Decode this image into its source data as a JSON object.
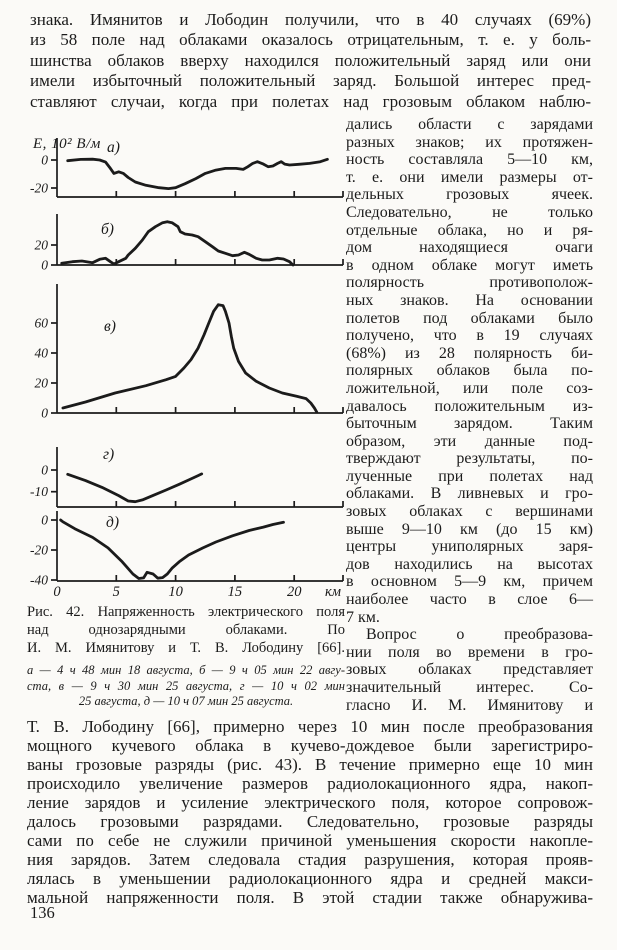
{
  "page": {
    "number": "136",
    "ink": "#1b1b1b",
    "paper": "#fbfaf7"
  },
  "top_paragraph": {
    "lines": [
      "знака. Имянитов и Лободин получили, что в 40 случаях (69%)",
      "из 58 поле над облаками оказалось отрицательным, т. е. у боль-",
      "шинства облаков вверху находился положительный заряд или они",
      "имели избыточный положительный заряд. Большой интерес пред-",
      "ставляют случаи, когда при полетах над грозовым облаком наблю-"
    ]
  },
  "right_column": {
    "para1_lines": [
      "дались области с зарядами",
      "разных знаков; их протяжен-",
      "ность составляла 5—10 км,",
      "т. е. они имели размеры от-",
      "дельных грозовых ячеек.",
      "Следовательно, не только",
      "отдельные облака, но и ря-",
      "дом находящиеся очаги",
      "в одном облаке могут иметь",
      "полярность противополож-",
      "ных знаков. На основании",
      "полетов под облаками было",
      "получено, что в 19 случаях",
      "(68%) из 28 полярность би-",
      "полярных облаков была по-",
      "ложительной, или поле соз-",
      "давалось положительным из-",
      "быточным зарядом. Таким",
      "образом, эти данные под-",
      "тверждают результаты, по-",
      "лученные при полетах над",
      "облаками. В ливневых и гро-",
      "зовых облаках с вершинами",
      "выше 9—10 км (до 15 км)",
      "центры униполярных заря-",
      "дов находились на высотах",
      "в основном 5—9 км, причем",
      "наиболее часто в слое 6—",
      "7 км."
    ],
    "para2_lines": [
      "Вопрос о преобразова-",
      "нии поля во времени в гро-",
      "зовых облаках представляет",
      "значительный интерес. Со-",
      "гласно И. М. Имянитову и"
    ]
  },
  "chart_data": {
    "type": "line",
    "title": "Рис. 42. Напряженность электрического поля над однозарядными облаками",
    "ylabel": "E, 10² В/м",
    "xlabel": "км",
    "x_range": [
      0,
      24
    ],
    "grid": false,
    "x_ticks": [
      {
        "v": 0,
        "t": "0"
      },
      {
        "v": 5,
        "t": "5"
      },
      {
        "v": 10,
        "t": "10"
      },
      {
        "v": 15,
        "t": "15"
      },
      {
        "v": 20,
        "t": "20"
      }
    ],
    "panels": [
      {
        "id": "a",
        "label": "а)",
        "ylim": [
          -26,
          4
        ],
        "yticks": [
          {
            "v": 0,
            "t": "0"
          },
          {
            "v": -20,
            "t": "-20"
          }
        ],
        "points": [
          [
            0.9,
            -0.5
          ],
          [
            2.0,
            0.4
          ],
          [
            3.0,
            0.6
          ],
          [
            3.6,
            0
          ],
          [
            4.1,
            -1.5
          ],
          [
            4.5,
            -6
          ],
          [
            4.8,
            -9.6
          ],
          [
            5.2,
            -8.4
          ],
          [
            5.6,
            -9.6
          ],
          [
            6.0,
            -12.5
          ],
          [
            6.6,
            -15.7
          ],
          [
            7.5,
            -18.1
          ],
          [
            8.6,
            -19.8
          ],
          [
            9.4,
            -20.4
          ],
          [
            10.0,
            -19.8
          ],
          [
            10.8,
            -16.9
          ],
          [
            11.7,
            -13.3
          ],
          [
            12.5,
            -9.6
          ],
          [
            13.4,
            -7.2
          ],
          [
            14.2,
            -6.0
          ],
          [
            15.1,
            -6.0
          ],
          [
            15.7,
            -6.7
          ],
          [
            16.1,
            -4.8
          ],
          [
            16.5,
            -2.4
          ],
          [
            16.9,
            -1.2
          ],
          [
            17.4,
            -2.9
          ],
          [
            17.8,
            -4.8
          ],
          [
            18.2,
            -4.3
          ],
          [
            18.6,
            -2.4
          ],
          [
            18.9,
            -1.2
          ],
          [
            19.2,
            -2.9
          ],
          [
            19.6,
            -3.6
          ],
          [
            20.4,
            -3.1
          ],
          [
            21.3,
            -2.4
          ],
          [
            22.2,
            -1.2
          ],
          [
            22.8,
            0.5
          ]
        ]
      },
      {
        "id": "b",
        "label": "б)",
        "ylim": [
          0,
          46
        ],
        "yticks": [
          {
            "v": 20,
            "t": "20"
          },
          {
            "v": 0,
            "t": "0"
          }
        ],
        "points": [
          [
            0.4,
            1.7
          ],
          [
            1.3,
            3.3
          ],
          [
            2.1,
            4
          ],
          [
            3.0,
            2.3
          ],
          [
            3.6,
            5.7
          ],
          [
            4.1,
            6.7
          ],
          [
            4.5,
            3.3
          ],
          [
            4.8,
            1
          ],
          [
            5.2,
            3.3
          ],
          [
            5.8,
            6.7
          ],
          [
            6.0,
            10
          ],
          [
            6.6,
            16.7
          ],
          [
            7.2,
            25
          ],
          [
            7.7,
            33.3
          ],
          [
            8.3,
            38.3
          ],
          [
            8.9,
            42.3
          ],
          [
            9.3,
            43.3
          ],
          [
            9.7,
            42.3
          ],
          [
            10.2,
            38.3
          ],
          [
            10.4,
            33.3
          ],
          [
            10.8,
            31
          ],
          [
            11.4,
            30
          ],
          [
            11.9,
            28.3
          ],
          [
            12.5,
            23.3
          ],
          [
            13.1,
            18.3
          ],
          [
            13.6,
            14
          ],
          [
            14.2,
            11.7
          ],
          [
            14.8,
            9.3
          ],
          [
            15.3,
            10
          ],
          [
            15.8,
            12.7
          ],
          [
            16.2,
            10.7
          ],
          [
            16.8,
            6.7
          ],
          [
            17.3,
            5
          ],
          [
            17.9,
            5
          ],
          [
            18.6,
            6.7
          ],
          [
            19.1,
            6
          ],
          [
            19.6,
            3.3
          ],
          [
            19.9,
            0
          ]
        ]
      },
      {
        "id": "v",
        "label": "в)",
        "ylim": [
          0,
          78
        ],
        "yticks": [
          {
            "v": 60,
            "t": "60"
          },
          {
            "v": 40,
            "t": "40"
          },
          {
            "v": 20,
            "t": "20"
          },
          {
            "v": 0,
            "t": "0"
          }
        ],
        "points": [
          [
            0.5,
            3.3
          ],
          [
            2.4,
            7.3
          ],
          [
            4.9,
            13.3
          ],
          [
            7.5,
            18.2
          ],
          [
            9.2,
            22.2
          ],
          [
            10.0,
            24.4
          ],
          [
            10.7,
            30
          ],
          [
            11.3,
            35.6
          ],
          [
            11.9,
            43.3
          ],
          [
            12.4,
            52.2
          ],
          [
            12.8,
            60
          ],
          [
            13.2,
            67.8
          ],
          [
            13.6,
            72.2
          ],
          [
            14.0,
            71.6
          ],
          [
            14.2,
            67.8
          ],
          [
            14.5,
            60
          ],
          [
            14.7,
            51.1
          ],
          [
            14.9,
            43.3
          ],
          [
            15.3,
            34.4
          ],
          [
            15.9,
            26.7
          ],
          [
            16.8,
            21.1
          ],
          [
            17.9,
            16.7
          ],
          [
            19.0,
            13.3
          ],
          [
            20.2,
            11.1
          ],
          [
            21.0,
            9.6
          ],
          [
            21.4,
            6.7
          ],
          [
            21.7,
            3.3
          ],
          [
            21.9,
            0.7
          ]
        ]
      },
      {
        "id": "g",
        "label": "г)",
        "ylim": [
          -17,
          3
        ],
        "yticks": [
          {
            "v": 0,
            "t": "0"
          },
          {
            "v": -10,
            "t": "-10"
          }
        ],
        "points": [
          [
            0.9,
            -2
          ],
          [
            2.4,
            -4.9
          ],
          [
            3.8,
            -8
          ],
          [
            5.2,
            -11.8
          ],
          [
            6.0,
            -14.3
          ],
          [
            6.6,
            -14.6
          ],
          [
            7.2,
            -13.8
          ],
          [
            8.1,
            -11.7
          ],
          [
            9.2,
            -9.2
          ],
          [
            10.3,
            -6.6
          ],
          [
            11.1,
            -4.6
          ],
          [
            11.9,
            -2.6
          ],
          [
            12.2,
            -1.8
          ]
        ]
      },
      {
        "id": "d",
        "label": "д)",
        "ylim": [
          -42,
          2
        ],
        "yticks": [
          {
            "v": 0,
            "t": "0"
          },
          {
            "v": -20,
            "t": "-20"
          },
          {
            "v": -40,
            "t": "-40"
          }
        ],
        "points": [
          [
            0.3,
            0
          ],
          [
            0.5,
            -1.2
          ],
          [
            1.5,
            -5.8
          ],
          [
            3.0,
            -11.6
          ],
          [
            4.3,
            -18.6
          ],
          [
            5.5,
            -27.9
          ],
          [
            6.4,
            -36
          ],
          [
            6.9,
            -39
          ],
          [
            7.3,
            -38.6
          ],
          [
            7.6,
            -34.9
          ],
          [
            8.1,
            -36
          ],
          [
            8.5,
            -38.8
          ],
          [
            8.9,
            -38.4
          ],
          [
            9.3,
            -36
          ],
          [
            9.7,
            -32.1
          ],
          [
            10.3,
            -27.9
          ],
          [
            11.1,
            -23.3
          ],
          [
            12.3,
            -18.6
          ],
          [
            13.4,
            -14.7
          ],
          [
            14.8,
            -10.5
          ],
          [
            16.2,
            -7
          ],
          [
            17.4,
            -4.7
          ],
          [
            18.2,
            -3
          ],
          [
            19.1,
            -1.5
          ]
        ]
      }
    ]
  },
  "caption": {
    "main_lines": [
      "Рис. 42. Напряженность электрического поля",
      "над однозарядными облаками. По",
      "И. М. Имянитову и Т. В. Лободину [66]."
    ],
    "sub_lines": [
      "а — 4 ч 48 мин 18 августа, б — 9 ч 05 мин 22 авгу-",
      "ста, в — 9 ч 30 мин 25 августа, г — 10 ч 02 мин",
      "25 августа, д — 10 ч 07 мин 25 августа."
    ]
  },
  "bottom_paragraph": {
    "lines": [
      "Т. В. Лободину [66], примерно через 10 мин после преобразования",
      "мощного кучевого облака в кучево-дождевое были зарегистриро-",
      "ваны грозовые разряды (рис. 43). В течение примерно еще 10 мин",
      "происходило увеличение размеров радиолокационного ядра, накоп-",
      "ление зарядов и усиление электрического поля, которое сопровож-",
      "далось грозовыми разрядами. Следовательно, грозовые разряды",
      "сами по себе не служили причиной уменьшения скорости накопле-",
      "ния зарядов. Затем следовала стадия разрушения, которая прояв-",
      "лялась в уменьшении радиолокационного ядра и средней макси-",
      "мальной напряженности поля. В этой стадии также обнаружива-"
    ]
  }
}
